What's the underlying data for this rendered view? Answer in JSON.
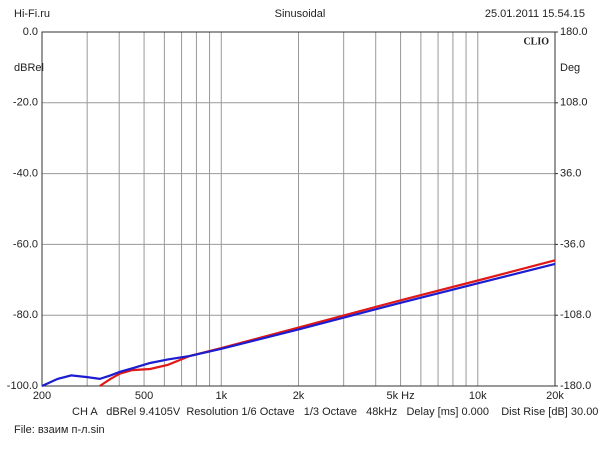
{
  "header": {
    "left": "Hi-Fi.ru",
    "center": "Sinusoidal",
    "right": "25.01.2011 15.54.15"
  },
  "chart_data": {
    "type": "line",
    "brand": "CLIO",
    "ylabel": "dBRel",
    "y2label": "Deg",
    "xscale": "log",
    "xlim": [
      200,
      20000
    ],
    "xticks": [
      {
        "value": 200,
        "label": "200"
      },
      {
        "value": 500,
        "label": "500"
      },
      {
        "value": 1000,
        "label": "1k"
      },
      {
        "value": 2000,
        "label": "2k"
      },
      {
        "value": 5000,
        "label": "5k Hz"
      },
      {
        "value": 10000,
        "label": "10k"
      },
      {
        "value": 20000,
        "label": "20k"
      }
    ],
    "xminor": [
      300,
      400,
      600,
      700,
      800,
      900,
      3000,
      4000,
      6000,
      7000,
      8000,
      9000
    ],
    "ylim": [
      -100,
      0
    ],
    "yticks": [
      {
        "value": 0,
        "label": "0.0"
      },
      {
        "value": -20,
        "label": "-20.0"
      },
      {
        "value": -40,
        "label": "-40.0"
      },
      {
        "value": -60,
        "label": "-60.0"
      },
      {
        "value": -80,
        "label": "-80.0"
      },
      {
        "value": -100,
        "label": "-100.0"
      }
    ],
    "y2lim": [
      -180,
      180
    ],
    "y2ticks": [
      {
        "value": 180,
        "label": "180.0"
      },
      {
        "value": 108,
        "label": "108.0"
      },
      {
        "value": 36,
        "label": "36.0"
      },
      {
        "value": -36,
        "label": "-36.0"
      },
      {
        "value": -108,
        "label": "-108.0"
      },
      {
        "value": -180,
        "label": "-180.0"
      }
    ],
    "grid": true,
    "series": [
      {
        "color": "#e01818",
        "x": [
          336,
          370,
          403,
          450,
          528,
          620,
          755,
          1000,
          2000,
          5000,
          10000,
          20000
        ],
        "values": [
          -100,
          -98,
          -96.5,
          -95.5,
          -95.2,
          -94,
          -91.5,
          -89.3,
          -83.5,
          -75.8,
          -70.2,
          -64.5
        ]
      },
      {
        "color": "#1c1cd0",
        "x": [
          200,
          230,
          260,
          300,
          336,
          370,
          403,
          450,
          528,
          620,
          755,
          1000,
          2000,
          5000,
          10000,
          20000
        ],
        "values": [
          -100,
          -98,
          -97,
          -97.5,
          -98,
          -97,
          -96,
          -95,
          -93.5,
          -92.5,
          -91.5,
          -89.5,
          -84,
          -76.5,
          -71,
          -65.5
        ]
      }
    ]
  },
  "footer": {
    "settings": "CH A   dBRel 9.4105V  Resolution 1/6 Octave   1/3 Octave   48kHz   Delay [ms] 0.000    Dist Rise [dB] 30.00",
    "file": "File: взаим п-л.sin"
  }
}
